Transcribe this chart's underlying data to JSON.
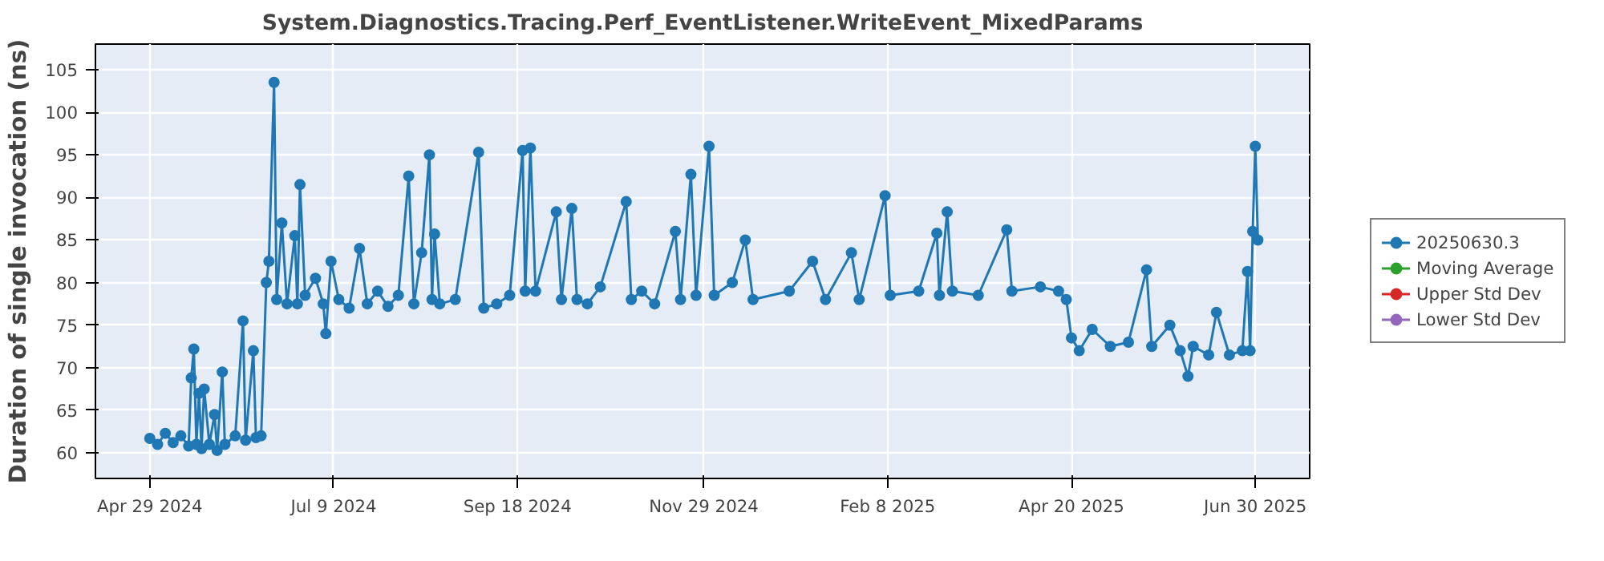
{
  "chart_data": {
    "type": "line",
    "title": "System.Diagnostics.Tracing.Perf_EventListener.WriteEvent_MixedParams",
    "ylabel": "Duration of single invocation (ns)",
    "x": [
      "2024-04-29",
      "2024-05-02",
      "2024-05-05",
      "2024-05-08",
      "2024-05-11",
      "2024-05-14",
      "2024-05-15",
      "2024-05-16",
      "2024-05-17",
      "2024-05-18",
      "2024-05-19",
      "2024-05-20",
      "2024-05-22",
      "2024-05-24",
      "2024-05-25",
      "2024-05-27",
      "2024-05-28",
      "2024-06-01",
      "2024-06-04",
      "2024-06-05",
      "2024-06-08",
      "2024-06-09",
      "2024-06-11",
      "2024-06-13",
      "2024-06-14",
      "2024-06-16",
      "2024-06-17",
      "2024-06-19",
      "2024-06-21",
      "2024-06-24",
      "2024-06-25",
      "2024-06-26",
      "2024-06-28",
      "2024-07-02",
      "2024-07-05",
      "2024-07-06",
      "2024-07-08",
      "2024-07-11",
      "2024-07-15",
      "2024-07-19",
      "2024-07-22",
      "2024-07-26",
      "2024-07-30",
      "2024-08-03",
      "2024-08-07",
      "2024-08-09",
      "2024-08-12",
      "2024-08-15",
      "2024-08-16",
      "2024-08-17",
      "2024-08-19",
      "2024-08-25",
      "2024-09-03",
      "2024-09-05",
      "2024-09-10",
      "2024-09-15",
      "2024-09-20",
      "2024-09-21",
      "2024-09-23",
      "2024-09-25",
      "2024-10-03",
      "2024-10-05",
      "2024-10-09",
      "2024-10-11",
      "2024-10-15",
      "2024-10-20",
      "2024-10-30",
      "2024-11-01",
      "2024-11-05",
      "2024-11-10",
      "2024-11-18",
      "2024-11-20",
      "2024-11-24",
      "2024-11-26",
      "2024-12-01",
      "2024-12-03",
      "2024-12-10",
      "2024-12-15",
      "2024-12-18",
      "2025-01-01",
      "2025-01-10",
      "2025-01-15",
      "2025-01-25",
      "2025-01-28",
      "2025-02-07",
      "2025-02-09",
      "2025-02-20",
      "2025-02-27",
      "2025-02-28",
      "2025-03-03",
      "2025-03-05",
      "2025-03-15",
      "2025-03-26",
      "2025-03-28",
      "2025-04-08",
      "2025-04-15",
      "2025-04-18",
      "2025-04-20",
      "2025-04-23",
      "2025-04-28",
      "2025-05-05",
      "2025-05-12",
      "2025-05-19",
      "2025-05-21",
      "2025-05-28",
      "2025-06-01",
      "2025-06-04",
      "2025-06-06",
      "2025-06-12",
      "2025-06-15",
      "2025-06-20",
      "2025-06-25",
      "2025-06-27",
      "2025-06-28",
      "2025-06-29",
      "2025-06-30",
      "2025-07-01"
    ],
    "series": [
      {
        "name": "20250630.3",
        "color": "#1f77b4",
        "values": [
          61.7,
          61.0,
          62.3,
          61.2,
          62.0,
          60.8,
          68.8,
          72.2,
          61.0,
          67.0,
          60.5,
          67.5,
          61.0,
          64.5,
          60.3,
          69.5,
          61.0,
          62.0,
          75.5,
          61.5,
          72.0,
          61.8,
          62.0,
          80.0,
          82.5,
          103.5,
          78.0,
          87.0,
          77.5,
          85.5,
          77.5,
          91.5,
          78.5,
          80.5,
          77.5,
          74.0,
          82.5,
          78.0,
          77.0,
          84.0,
          77.5,
          79.0,
          77.2,
          78.5,
          92.5,
          77.5,
          83.5,
          95.0,
          78.0,
          85.7,
          77.5,
          78.0,
          95.3,
          77.0,
          77.5,
          78.5,
          95.5,
          79.0,
          95.8,
          79.0,
          88.3,
          78.0,
          88.7,
          78.0,
          77.5,
          79.5,
          89.5,
          78.0,
          79.0,
          77.5,
          86.0,
          78.0,
          92.7,
          78.5,
          96.0,
          78.5,
          80.0,
          85.0,
          78.0,
          79.0,
          82.5,
          78.0,
          83.5,
          78.0,
          90.2,
          78.5,
          79.0,
          85.8,
          78.5,
          88.3,
          79.0,
          78.5,
          86.2,
          79.0,
          79.5,
          79.0,
          78.0,
          73.5,
          72.0,
          74.5,
          72.5,
          73.0,
          81.5,
          72.5,
          75.0,
          72.0,
          69.0,
          72.5,
          71.5,
          76.5,
          71.5,
          72.0,
          81.3,
          72.0,
          86.0,
          96.0,
          85.0
        ]
      },
      {
        "name": "Moving Average",
        "color": "#2ca02c",
        "values": [
          null,
          null,
          null,
          null,
          null,
          null,
          null,
          null,
          null,
          null,
          null,
          null,
          null,
          null,
          null,
          null,
          null,
          null,
          null,
          null,
          null,
          null,
          null,
          null,
          null,
          null,
          null,
          null,
          null,
          null,
          null,
          null,
          null,
          null,
          null,
          null,
          null,
          null,
          null,
          null,
          null,
          null,
          null,
          null,
          null,
          null,
          null,
          null,
          null,
          null,
          null,
          null,
          null,
          null,
          null,
          null,
          null,
          null,
          null,
          null,
          null,
          null,
          null,
          null,
          null,
          null,
          null,
          null,
          null,
          null,
          null,
          null,
          null,
          null,
          null,
          null,
          null,
          null,
          null,
          null,
          null,
          null,
          null,
          null,
          null,
          null,
          null,
          null,
          null,
          null,
          null,
          null,
          null,
          null,
          null,
          null,
          null,
          null,
          null,
          null,
          null,
          null,
          null,
          null,
          null,
          null,
          null,
          null,
          null,
          null,
          null,
          null,
          null,
          null,
          null,
          null,
          null
        ]
      },
      {
        "name": "Upper Std Dev",
        "color": "#d62728",
        "values": [
          null,
          null,
          null,
          null,
          null,
          null,
          null,
          null,
          null,
          null,
          null,
          null,
          null,
          null,
          null,
          null,
          null,
          null,
          null,
          null,
          null,
          null,
          null,
          null,
          null,
          null,
          null,
          null,
          null,
          null,
          null,
          null,
          null,
          null,
          null,
          null,
          null,
          null,
          null,
          null,
          null,
          null,
          null,
          null,
          null,
          null,
          null,
          null,
          null,
          null,
          null,
          null,
          null,
          null,
          null,
          null,
          null,
          null,
          null,
          null,
          null,
          null,
          null,
          null,
          null,
          null,
          null,
          null,
          null,
          null,
          null,
          null,
          null,
          null,
          null,
          null,
          null,
          null,
          null,
          null,
          null,
          null,
          null,
          null,
          null,
          null,
          null,
          null,
          null,
          null,
          null,
          null,
          null,
          null,
          null,
          null,
          null,
          null,
          null,
          null,
          null,
          null,
          null,
          null,
          null,
          null,
          null,
          null,
          null,
          null,
          null,
          null,
          null,
          null,
          null,
          null,
          null
        ]
      },
      {
        "name": "Lower Std Dev",
        "color": "#9467bd",
        "values": [
          null,
          null,
          null,
          null,
          null,
          null,
          null,
          null,
          null,
          null,
          null,
          null,
          null,
          null,
          null,
          null,
          null,
          null,
          null,
          null,
          null,
          null,
          null,
          null,
          null,
          null,
          null,
          null,
          null,
          null,
          null,
          null,
          null,
          null,
          null,
          null,
          null,
          null,
          null,
          null,
          null,
          null,
          null,
          null,
          null,
          null,
          null,
          null,
          null,
          null,
          null,
          null,
          null,
          null,
          null,
          null,
          null,
          null,
          null,
          null,
          null,
          null,
          null,
          null,
          null,
          null,
          null,
          null,
          null,
          null,
          null,
          null,
          null,
          null,
          null,
          null,
          null,
          null,
          null,
          null,
          null,
          null,
          null,
          null,
          null,
          null,
          null,
          null,
          null,
          null,
          null,
          null,
          null,
          null,
          null,
          null,
          null,
          null,
          null,
          null,
          null,
          null,
          null,
          null,
          null,
          null,
          null,
          null,
          null,
          null,
          null,
          null,
          null,
          null,
          null,
          null,
          null
        ]
      }
    ],
    "xlim": [
      "2024-04-08",
      "2025-07-21"
    ],
    "xticks": [
      {
        "value": "2024-04-29",
        "label": "Apr 29 2024"
      },
      {
        "value": "2024-07-09",
        "label": "Jul 9 2024"
      },
      {
        "value": "2024-09-18",
        "label": "Sep 18 2024"
      },
      {
        "value": "2024-11-29",
        "label": "Nov 29 2024"
      },
      {
        "value": "2025-02-08",
        "label": "Feb 8 2025"
      },
      {
        "value": "2025-04-20",
        "label": "Apr 20 2025"
      },
      {
        "value": "2025-06-30",
        "label": "Jun 30 2025"
      }
    ],
    "ylim": [
      57,
      108
    ],
    "yticks": [
      60,
      65,
      70,
      75,
      80,
      85,
      90,
      95,
      100,
      105
    ],
    "grid": true,
    "legend": "right",
    "marker": "circle",
    "line_style": "solid"
  }
}
